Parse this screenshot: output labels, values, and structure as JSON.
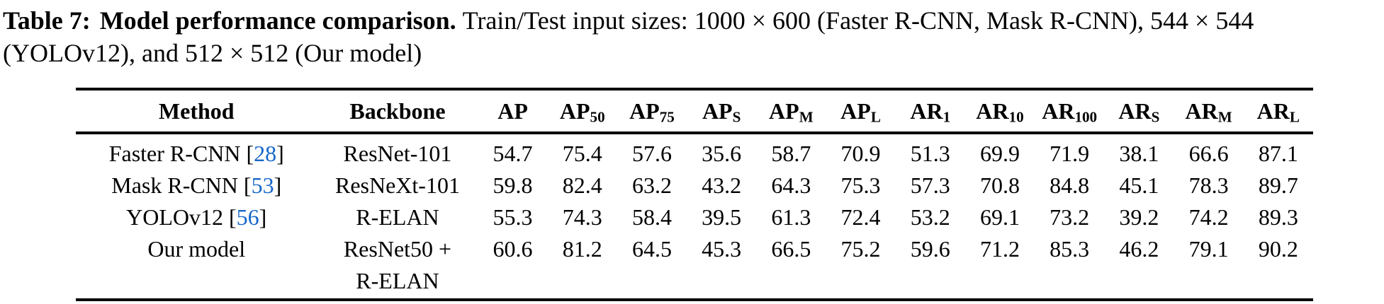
{
  "caption": {
    "label": "Table 7:",
    "title": "Model performance comparison.",
    "line1_rest": "Train/Test input sizes: 1000 × 600 (Faster R-CNN, Mask R-CNN), 544 × 544",
    "line2": "(YOLOv12), and 512 × 512 (Our model)"
  },
  "colors": {
    "citation_blue": "#1767c8",
    "text": "#000000",
    "background": "#ffffff"
  },
  "table": {
    "headers": [
      {
        "text": "Method",
        "sub": ""
      },
      {
        "text": "Backbone",
        "sub": ""
      },
      {
        "text": "AP",
        "sub": ""
      },
      {
        "text": "AP",
        "sub": "50"
      },
      {
        "text": "AP",
        "sub": "75"
      },
      {
        "text": "AP",
        "sub": "S"
      },
      {
        "text": "AP",
        "sub": "M"
      },
      {
        "text": "AP",
        "sub": "L"
      },
      {
        "text": "AR",
        "sub": "1"
      },
      {
        "text": "AR",
        "sub": "10"
      },
      {
        "text": "AR",
        "sub": "100"
      },
      {
        "text": "AR",
        "sub": "S"
      },
      {
        "text": "AR",
        "sub": "M"
      },
      {
        "text": "AR",
        "sub": "L"
      }
    ],
    "rows": [
      {
        "method": "Faster R-CNN",
        "cite": "28",
        "backbone": [
          "ResNet-101"
        ],
        "values": [
          "54.7",
          "75.4",
          "57.6",
          "35.6",
          "58.7",
          "70.9",
          "51.3",
          "69.9",
          "71.9",
          "38.1",
          "66.6",
          "87.1"
        ]
      },
      {
        "method": "Mask R-CNN",
        "cite": "53",
        "backbone": [
          "ResNeXt-101"
        ],
        "values": [
          "59.8",
          "82.4",
          "63.2",
          "43.2",
          "64.3",
          "75.3",
          "57.3",
          "70.8",
          "84.8",
          "45.1",
          "78.3",
          "89.7"
        ]
      },
      {
        "method": "YOLOv12",
        "cite": "56",
        "backbone": [
          "R-ELAN"
        ],
        "values": [
          "55.3",
          "74.3",
          "58.4",
          "39.5",
          "61.3",
          "72.4",
          "53.2",
          "69.1",
          "73.2",
          "39.2",
          "74.2",
          "89.3"
        ]
      },
      {
        "method": "Our model",
        "cite": null,
        "backbone": [
          "ResNet50 +",
          "R-ELAN"
        ],
        "values": [
          "60.6",
          "81.2",
          "64.5",
          "45.3",
          "66.5",
          "75.2",
          "59.6",
          "71.2",
          "85.3",
          "46.2",
          "79.1",
          "90.2"
        ]
      }
    ]
  }
}
